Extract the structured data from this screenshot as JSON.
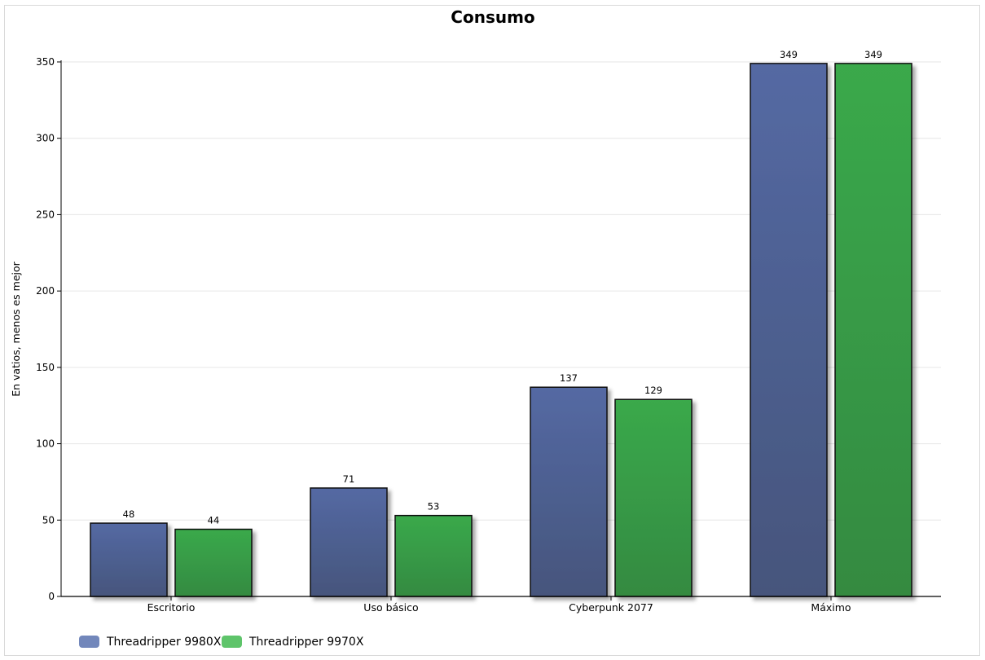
{
  "chart_data": {
    "type": "bar",
    "title": "Consumo",
    "xlabel": "",
    "ylabel": "En vatios, menos es mejor",
    "ylim": [
      0,
      350
    ],
    "yticks": [
      0,
      50,
      100,
      150,
      200,
      250,
      300,
      350
    ],
    "grid": true,
    "legend_position": "bottom-left",
    "categories": [
      "Escritorio",
      "Uso básico",
      "Cyberpunk 2077",
      "Máximo"
    ],
    "series": [
      {
        "name": "Threadripper 9980X",
        "values": [
          48,
          71,
          137,
          349
        ],
        "color": "#5066a0",
        "legend_color": "#7287bb"
      },
      {
        "name": "Threadripper 9970X",
        "values": [
          44,
          53,
          129,
          349
        ],
        "color": "#3aa54c",
        "legend_color": "#5ec46a"
      }
    ]
  }
}
